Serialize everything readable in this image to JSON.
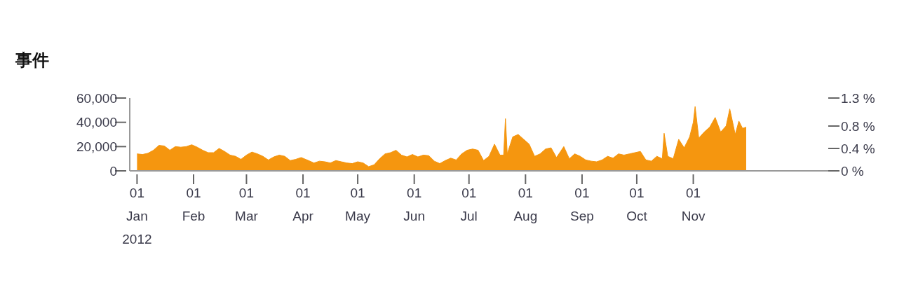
{
  "chart_data": {
    "type": "area",
    "title": "事件",
    "x": [
      "2012-01-01",
      "2012-01-04",
      "2012-01-07",
      "2012-01-10",
      "2012-01-13",
      "2012-01-16",
      "2012-01-19",
      "2012-01-22",
      "2012-01-25",
      "2012-01-28",
      "2012-01-31",
      "2012-02-03",
      "2012-02-06",
      "2012-02-09",
      "2012-02-12",
      "2012-02-15",
      "2012-02-18",
      "2012-02-21",
      "2012-02-24",
      "2012-02-27",
      "2012-03-01",
      "2012-03-04",
      "2012-03-07",
      "2012-03-10",
      "2012-03-13",
      "2012-03-16",
      "2012-03-19",
      "2012-03-22",
      "2012-03-25",
      "2012-03-28",
      "2012-03-31",
      "2012-04-04",
      "2012-04-07",
      "2012-04-10",
      "2012-04-13",
      "2012-04-16",
      "2012-04-19",
      "2012-04-22",
      "2012-04-25",
      "2012-04-28",
      "2012-05-01",
      "2012-05-04",
      "2012-05-07",
      "2012-05-10",
      "2012-05-13",
      "2012-05-16",
      "2012-05-19",
      "2012-05-22",
      "2012-05-25",
      "2012-05-28",
      "2012-05-31",
      "2012-06-03",
      "2012-06-06",
      "2012-06-09",
      "2012-06-12",
      "2012-06-15",
      "2012-06-18",
      "2012-06-21",
      "2012-06-24",
      "2012-06-27",
      "2012-06-30",
      "2012-07-03",
      "2012-07-06",
      "2012-07-09",
      "2012-07-12",
      "2012-07-15",
      "2012-07-18",
      "2012-07-20",
      "2012-07-21",
      "2012-07-22",
      "2012-07-25",
      "2012-07-28",
      "2012-07-31",
      "2012-08-03",
      "2012-08-06",
      "2012-08-09",
      "2012-08-12",
      "2012-08-15",
      "2012-08-18",
      "2012-08-22",
      "2012-08-25",
      "2012-08-28",
      "2012-08-31",
      "2012-09-03",
      "2012-09-06",
      "2012-09-09",
      "2012-09-12",
      "2012-09-15",
      "2012-09-18",
      "2012-09-21",
      "2012-09-24",
      "2012-09-27",
      "2012-09-30",
      "2012-10-03",
      "2012-10-06",
      "2012-10-09",
      "2012-10-12",
      "2012-10-15",
      "2012-10-16",
      "2012-10-18",
      "2012-10-21",
      "2012-10-24",
      "2012-10-27",
      "2012-10-30",
      "2012-11-01",
      "2012-11-02",
      "2012-11-04",
      "2012-11-07",
      "2012-11-10",
      "2012-11-13",
      "2012-11-16",
      "2012-11-19",
      "2012-11-21",
      "2012-11-24",
      "2012-11-26",
      "2012-11-28",
      "2012-11-30"
    ],
    "series": [
      {
        "color": "#f5960f",
        "values": [
          14000,
          13500,
          14500,
          17000,
          21000,
          20500,
          17000,
          20000,
          19500,
          20000,
          21500,
          19500,
          17000,
          15000,
          15000,
          18500,
          16000,
          13000,
          12000,
          9500,
          13000,
          15500,
          14000,
          12000,
          9000,
          11500,
          13000,
          12000,
          8500,
          9500,
          11000,
          8500,
          6500,
          8000,
          7500,
          6500,
          8500,
          7500,
          6500,
          6000,
          7500,
          6500,
          3500,
          5000,
          10000,
          14000,
          15000,
          17000,
          13000,
          11500,
          13500,
          11500,
          13000,
          12500,
          8000,
          6000,
          8500,
          10500,
          9000,
          14000,
          17000,
          18000,
          17000,
          8500,
          12000,
          22000,
          13000,
          13000,
          43000,
          14000,
          28000,
          30000,
          26000,
          22000,
          12000,
          14000,
          18000,
          19000,
          11000,
          20000,
          10000,
          14000,
          12000,
          9000,
          8000,
          7500,
          9000,
          12000,
          10500,
          14000,
          13000,
          14000,
          15000,
          16000,
          9000,
          8000,
          12000,
          10000,
          31000,
          12000,
          10000,
          26000,
          19000,
          28000,
          40000,
          53000,
          27000,
          32000,
          36000,
          44000,
          32000,
          37000,
          51000,
          30000,
          41000,
          35000,
          36000
        ]
      }
    ],
    "xlim": [
      "2011-12-28",
      "2013-01-14"
    ],
    "xticks": [
      {
        "value": "2012-01-01",
        "label": "01\nJan\n2012"
      },
      {
        "value": "2012-02-01",
        "label": "01\nFeb"
      },
      {
        "value": "2012-03-01",
        "label": "01\nMar"
      },
      {
        "value": "2012-04-01",
        "label": "01\nApr"
      },
      {
        "value": "2012-05-01",
        "label": "01\nMay"
      },
      {
        "value": "2012-06-01",
        "label": "01\nJun"
      },
      {
        "value": "2012-07-01",
        "label": "01\nJul"
      },
      {
        "value": "2012-08-01",
        "label": "01\nAug"
      },
      {
        "value": "2012-09-01",
        "label": "01\nSep"
      },
      {
        "value": "2012-10-01",
        "label": "01\nOct"
      },
      {
        "value": "2012-11-01",
        "label": "01\nNov"
      }
    ],
    "ylim": [
      0,
      60000
    ],
    "yticks": [
      {
        "value": 0,
        "label": "0"
      },
      {
        "value": 20000,
        "label": "20,000"
      },
      {
        "value": 40000,
        "label": "40,000"
      },
      {
        "value": 60000,
        "label": "60,000"
      }
    ],
    "y2lim": [
      0,
      1.3
    ],
    "y2ticks": [
      {
        "value": 0,
        "label": "0 %"
      },
      {
        "value": 0.4,
        "label": "0.4 %"
      },
      {
        "value": 0.8,
        "label": "0.8 %"
      },
      {
        "value": 1.3,
        "label": "1.3 %"
      }
    ],
    "grid": false,
    "legend": false
  }
}
